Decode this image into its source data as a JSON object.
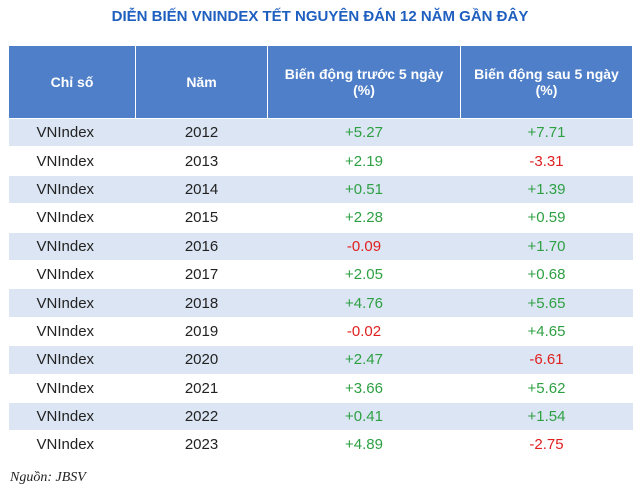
{
  "title": "DIỄN BIẾN VNINDEX TẾT NGUYÊN ĐÁN 12 NĂM GẦN ĐÂY",
  "table": {
    "header": [
      "Chỉ số",
      "Năm",
      "Biến động trước 5 ngày (%)",
      "Biến động sau 5 ngày (%)"
    ],
    "rows": [
      [
        "VNIndex",
        "2012",
        "+5.27",
        "+7.71"
      ],
      [
        "VNIndex",
        "2013",
        "+2.19",
        "-3.31"
      ],
      [
        "VNIndex",
        "2014",
        "+0.51",
        "+1.39"
      ],
      [
        "VNIndex",
        "2015",
        "+2.28",
        "+0.59"
      ],
      [
        "VNIndex",
        "2016",
        "-0.09",
        "+1.70"
      ],
      [
        "VNIndex",
        "2017",
        "+2.05",
        "+0.68"
      ],
      [
        "VNIndex",
        "2018",
        "+4.76",
        "+5.65"
      ],
      [
        "VNIndex",
        "2019",
        "-0.02",
        "+4.65"
      ],
      [
        "VNIndex",
        "2020",
        "+2.47",
        "-6.61"
      ],
      [
        "VNIndex",
        "2021",
        "+3.66",
        "+5.62"
      ],
      [
        "VNIndex",
        "2022",
        "+0.41",
        "+1.54"
      ],
      [
        "VNIndex",
        "2023",
        "+4.89",
        "-2.75"
      ]
    ]
  },
  "source": "Nguồn: JBSV"
}
